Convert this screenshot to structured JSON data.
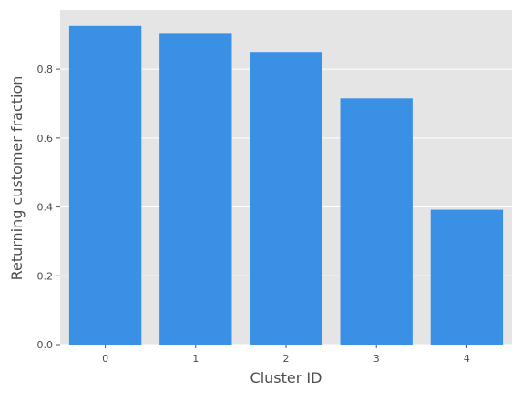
{
  "chart_data": {
    "type": "bar",
    "title": "",
    "xlabel": "Cluster ID",
    "ylabel": "Returning customer fraction",
    "categories": [
      "0",
      "1",
      "2",
      "3",
      "4"
    ],
    "values": [
      0.925,
      0.905,
      0.85,
      0.715,
      0.392
    ],
    "ylim": [
      0,
      0.972
    ],
    "yticks": [
      0.0,
      0.2,
      0.4,
      0.6,
      0.8
    ],
    "ytick_labels": [
      "0.0",
      "0.2",
      "0.4",
      "0.6",
      "0.8"
    ],
    "grid": true,
    "legend": "none",
    "bar_color": "#3a90e5",
    "background_color": "#e5e5e5",
    "grid_color": "#ffffff"
  }
}
